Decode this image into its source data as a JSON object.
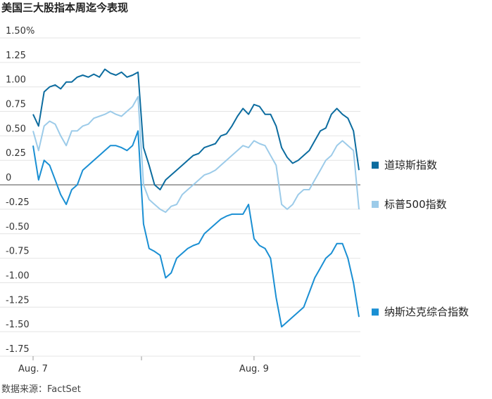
{
  "chart_data": {
    "type": "line",
    "title": "美国三大股指本周迄今表现",
    "source": "数据来源：FactSet",
    "categories": [
      "Aug. 7",
      null,
      null,
      null,
      null,
      null,
      null,
      null,
      null,
      null,
      null,
      null,
      null,
      null,
      null,
      null,
      null,
      null,
      null,
      null,
      null,
      null,
      null,
      null,
      null,
      null,
      null,
      null,
      null,
      null,
      null,
      null,
      null,
      null,
      null,
      null,
      null,
      null,
      null,
      null,
      "Aug. 9",
      null,
      null,
      null,
      null,
      null,
      null,
      null,
      null,
      null,
      null,
      null,
      null,
      null,
      null,
      null,
      null,
      null,
      null,
      null
    ],
    "ylim": [
      -1.75,
      1.5
    ],
    "yticks": [
      {
        "value": 1.5,
        "label": "1.50%"
      },
      1.25,
      {
        "value": 1,
        "label": "1.00"
      },
      0.75,
      {
        "value": 0.5,
        "label": "0.50"
      },
      0.25,
      0,
      -0.25,
      {
        "value": -0.5,
        "label": "-0.50"
      },
      -0.75,
      {
        "value": -1,
        "label": "-1.00"
      },
      -1.25,
      {
        "value": -1.5,
        "label": "-1.50"
      },
      -1.75
    ],
    "grid": true,
    "series": [
      {
        "name": "道琼斯指数",
        "color": "#0c6c9f",
        "values": [
          0.72,
          0.6,
          0.95,
          1.0,
          1.02,
          0.98,
          1.05,
          1.05,
          1.1,
          1.12,
          1.1,
          1.13,
          1.1,
          1.18,
          1.14,
          1.12,
          1.15,
          1.1,
          1.12,
          1.15,
          0.38,
          0.2,
          0.0,
          -0.05,
          0.05,
          0.1,
          0.15,
          0.2,
          0.25,
          0.3,
          0.32,
          0.38,
          0.4,
          0.42,
          0.5,
          0.52,
          0.6,
          0.7,
          0.78,
          0.72,
          0.82,
          0.8,
          0.72,
          0.72,
          0.6,
          0.38,
          0.28,
          0.22,
          0.25,
          0.3,
          0.35,
          0.45,
          0.55,
          0.58,
          0.72,
          0.78,
          0.72,
          0.68,
          0.55,
          0.15
        ]
      },
      {
        "name": "标普500指数",
        "color": "#9ccbe9",
        "values": [
          0.55,
          0.35,
          0.6,
          0.65,
          0.62,
          0.5,
          0.4,
          0.55,
          0.55,
          0.6,
          0.62,
          0.68,
          0.7,
          0.72,
          0.75,
          0.72,
          0.7,
          0.75,
          0.8,
          0.9,
          0.0,
          -0.15,
          -0.2,
          -0.25,
          -0.28,
          -0.22,
          -0.2,
          -0.1,
          -0.05,
          0.0,
          0.05,
          0.1,
          0.12,
          0.15,
          0.2,
          0.25,
          0.3,
          0.35,
          0.4,
          0.38,
          0.45,
          0.42,
          0.4,
          0.3,
          0.2,
          -0.2,
          -0.25,
          -0.2,
          -0.1,
          -0.05,
          -0.05,
          0.05,
          0.15,
          0.25,
          0.3,
          0.4,
          0.45,
          0.4,
          0.35,
          -0.25
        ]
      },
      {
        "name": "纳斯达克综合指数",
        "color": "#1a8fd3",
        "values": [
          0.4,
          0.05,
          0.25,
          0.2,
          0.05,
          -0.1,
          -0.2,
          -0.05,
          0.0,
          0.15,
          0.2,
          0.25,
          0.3,
          0.35,
          0.4,
          0.4,
          0.38,
          0.35,
          0.4,
          0.55,
          -0.4,
          -0.65,
          -0.68,
          -0.72,
          -0.95,
          -0.9,
          -0.75,
          -0.7,
          -0.65,
          -0.62,
          -0.6,
          -0.5,
          -0.45,
          -0.4,
          -0.35,
          -0.32,
          -0.3,
          -0.3,
          -0.3,
          -0.2,
          -0.55,
          -0.62,
          -0.65,
          -0.75,
          -1.15,
          -1.45,
          -1.4,
          -1.35,
          -1.3,
          -1.25,
          -1.1,
          -0.95,
          -0.85,
          -0.75,
          -0.7,
          -0.6,
          -0.6,
          -0.75,
          -1.0,
          -1.35
        ]
      }
    ]
  }
}
